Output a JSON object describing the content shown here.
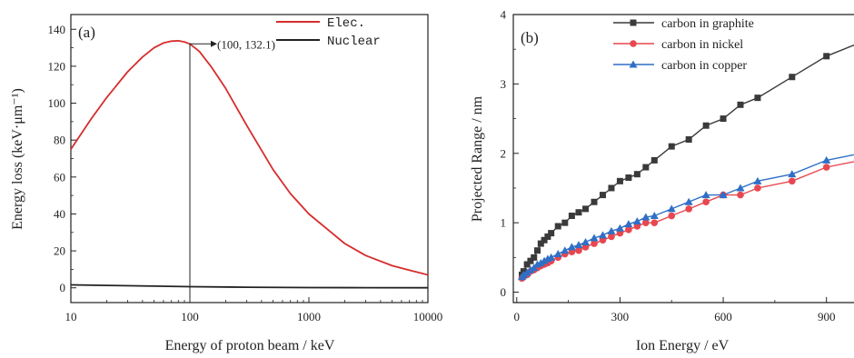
{
  "chart_data": [
    {
      "type": "line",
      "panel_label": "(a)",
      "xlabel": "Energy of proton beam / keV",
      "ylabel": "Energy loss (keV·μm⁻¹)",
      "x_scale": "log",
      "xlim": [
        10,
        10000
      ],
      "ylim": [
        -8,
        148
      ],
      "x_ticks": [
        10,
        100,
        1000,
        10000
      ],
      "x_tick_labels": [
        "10",
        "100",
        "1000",
        "10000"
      ],
      "y_ticks": [
        0,
        20,
        40,
        60,
        80,
        100,
        120,
        140
      ],
      "y_tick_labels": [
        "0",
        "20",
        "40",
        "60",
        "80",
        "100",
        "120",
        "140"
      ],
      "legend_position": "top-right",
      "series": [
        {
          "name": "Elec.",
          "color": "#d62d2d",
          "x": [
            10,
            15,
            20,
            30,
            40,
            50,
            60,
            70,
            80,
            90,
            100,
            120,
            150,
            200,
            300,
            500,
            700,
            1000,
            2000,
            3000,
            5000,
            7000,
            10000
          ],
          "y": [
            75,
            92,
            103,
            117,
            125,
            130,
            132.6,
            133.6,
            133.8,
            133.2,
            132.1,
            128,
            120,
            108,
            88,
            64,
            51,
            40,
            24,
            17.5,
            12,
            9.5,
            7
          ]
        },
        {
          "name": "Nuclear",
          "color": "#222222",
          "x": [
            10,
            20,
            50,
            100,
            300,
            1000,
            3000,
            10000
          ],
          "y": [
            1.6,
            1.3,
            0.9,
            0.6,
            0.3,
            0.12,
            0.05,
            0.02
          ]
        }
      ],
      "annotation": {
        "text": "(100, 132.1)",
        "x": 100,
        "y": 132.1
      }
    },
    {
      "type": "line",
      "panel_label": "(b)",
      "xlabel": "Ion Energy / eV",
      "ylabel": "Projected Range / nm",
      "xlim": [
        -10,
        980
      ],
      "ylim": [
        -0.15,
        4
      ],
      "x_ticks": [
        0,
        300,
        600,
        900
      ],
      "x_tick_labels": [
        "0",
        "300",
        "600",
        "900"
      ],
      "y_ticks": [
        0,
        1,
        2,
        3,
        4
      ],
      "y_tick_labels": [
        "0",
        "1",
        "2",
        "3",
        "4"
      ],
      "legend_position": "top-left",
      "series": [
        {
          "name": "carbon in graphite",
          "color": "#3a3a3a",
          "marker": "square",
          "x": [
            15,
            20,
            30,
            40,
            50,
            60,
            70,
            80,
            90,
            100,
            120,
            140,
            160,
            180,
            200,
            225,
            250,
            275,
            300,
            325,
            350,
            375,
            400,
            450,
            500,
            550,
            600,
            650,
            700,
            800,
            900,
            1000
          ],
          "y": [
            0.25,
            0.3,
            0.4,
            0.45,
            0.5,
            0.6,
            0.7,
            0.75,
            0.8,
            0.85,
            0.95,
            1.0,
            1.1,
            1.15,
            1.2,
            1.3,
            1.4,
            1.5,
            1.6,
            1.65,
            1.7,
            1.8,
            1.9,
            2.1,
            2.2,
            2.4,
            2.5,
            2.7,
            2.8,
            3.1,
            3.4,
            3.6
          ]
        },
        {
          "name": "carbon in nickel",
          "color": "#e8474f",
          "marker": "circle",
          "x": [
            15,
            20,
            30,
            40,
            50,
            60,
            70,
            80,
            90,
            100,
            120,
            140,
            160,
            180,
            200,
            225,
            250,
            275,
            300,
            325,
            350,
            375,
            400,
            450,
            500,
            550,
            600,
            650,
            700,
            800,
            900,
            1000
          ],
          "y": [
            0.2,
            0.22,
            0.25,
            0.3,
            0.32,
            0.35,
            0.38,
            0.4,
            0.42,
            0.45,
            0.5,
            0.55,
            0.58,
            0.6,
            0.65,
            0.7,
            0.75,
            0.8,
            0.85,
            0.9,
            0.95,
            1.0,
            1.0,
            1.1,
            1.2,
            1.3,
            1.4,
            1.4,
            1.5,
            1.6,
            1.8,
            1.9
          ]
        },
        {
          "name": "carbon in copper",
          "color": "#2f6fc6",
          "marker": "triangle",
          "x": [
            15,
            20,
            30,
            40,
            50,
            60,
            70,
            80,
            90,
            100,
            120,
            140,
            160,
            180,
            200,
            225,
            250,
            275,
            300,
            325,
            350,
            375,
            400,
            450,
            500,
            550,
            600,
            650,
            700,
            800,
            900,
            1000
          ],
          "y": [
            0.22,
            0.25,
            0.28,
            0.32,
            0.35,
            0.4,
            0.42,
            0.45,
            0.48,
            0.5,
            0.55,
            0.6,
            0.65,
            0.68,
            0.72,
            0.78,
            0.82,
            0.88,
            0.92,
            0.98,
            1.02,
            1.08,
            1.1,
            1.2,
            1.3,
            1.4,
            1.4,
            1.5,
            1.6,
            1.7,
            1.9,
            2.0
          ]
        }
      ]
    }
  ]
}
